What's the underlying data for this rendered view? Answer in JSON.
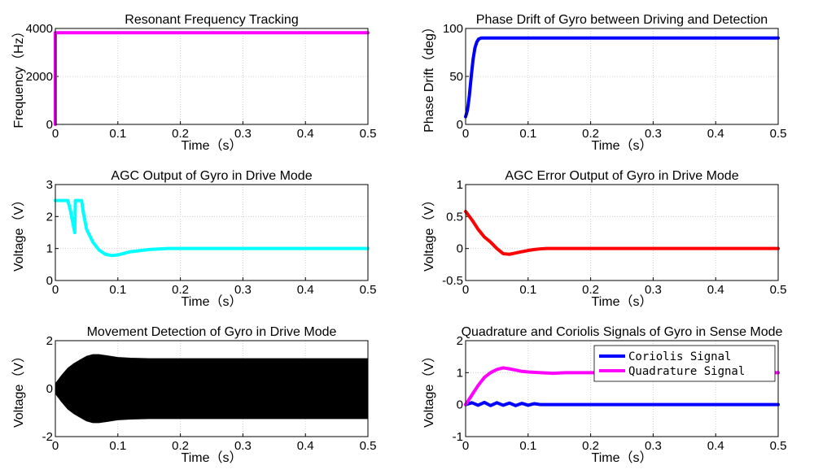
{
  "chart_data": [
    {
      "type": "line",
      "title": "Resonant Frequency Tracking",
      "xlabel": "Time（s）",
      "ylabel": "Frequency（Hz）",
      "xlim": [
        0,
        0.5
      ],
      "ylim": [
        0,
        4000
      ],
      "xticks": [
        "0",
        "0.1",
        "0.2",
        "0.3",
        "0.4",
        "0.5"
      ],
      "yticks": [
        "0",
        "2000",
        "4000"
      ],
      "grid": true,
      "series": [
        {
          "color": "#ff00ff",
          "x": [
            0,
            0,
            0.002,
            0.5
          ],
          "y": [
            0,
            3820,
            3820,
            3820
          ]
        }
      ]
    },
    {
      "type": "line",
      "title": "Phase Drift of Gyro between Driving and Detection",
      "xlabel": "Time（s）",
      "ylabel": "Phase Drift（deg）",
      "xlim": [
        0,
        0.5
      ],
      "ylim": [
        0,
        100
      ],
      "xticks": [
        "0",
        "0.1",
        "0.2",
        "0.3",
        "0.4",
        "0.5"
      ],
      "yticks": [
        "0",
        "50",
        "100"
      ],
      "grid": true,
      "series": [
        {
          "color": "#0000ff",
          "x": [
            0,
            0.003,
            0.006,
            0.009,
            0.012,
            0.015,
            0.018,
            0.021,
            0.025,
            0.03,
            0.05,
            0.5
          ],
          "y": [
            8,
            15,
            30,
            50,
            68,
            80,
            86,
            89,
            90,
            90,
            90,
            90
          ]
        }
      ]
    },
    {
      "type": "line",
      "title": "AGC Output of Gyro in Drive Mode",
      "xlabel": "Time（s）",
      "ylabel": "Voltage（V）",
      "xlim": [
        0,
        0.5
      ],
      "ylim": [
        0,
        3
      ],
      "xticks": [
        "0",
        "0.1",
        "0.2",
        "0.3",
        "0.4",
        "0.5"
      ],
      "yticks": [
        "0",
        "1",
        "2",
        "3"
      ],
      "grid": true,
      "series": [
        {
          "color": "#00ffff",
          "x": [
            0,
            0.02,
            0.024,
            0.028,
            0.031,
            0.032,
            0.034,
            0.042,
            0.045,
            0.05,
            0.06,
            0.07,
            0.08,
            0.09,
            0.1,
            0.12,
            0.15,
            0.18,
            0.25,
            0.5
          ],
          "y": [
            2.5,
            2.5,
            2.2,
            1.8,
            1.5,
            2.5,
            2.5,
            2.5,
            2.1,
            1.6,
            1.2,
            0.95,
            0.82,
            0.78,
            0.8,
            0.9,
            0.97,
            1.0,
            1.0,
            1.0
          ]
        }
      ]
    },
    {
      "type": "line",
      "title": "AGC Error Output of Gyro in Drive Mode",
      "xlabel": "Time（s）",
      "ylabel": "Voltage（V）",
      "xlim": [
        0,
        0.5
      ],
      "ylim": [
        -0.5,
        1
      ],
      "xticks": [
        "0",
        "0.1",
        "0.2",
        "0.3",
        "0.4",
        "0.5"
      ],
      "yticks": [
        "-0.5",
        "0",
        "0.5",
        "1"
      ],
      "grid": true,
      "series": [
        {
          "color": "#ff0000",
          "x": [
            0,
            0.01,
            0.02,
            0.03,
            0.04,
            0.05,
            0.06,
            0.07,
            0.08,
            0.09,
            0.1,
            0.11,
            0.12,
            0.13,
            0.2,
            0.5
          ],
          "y": [
            0.58,
            0.45,
            0.3,
            0.18,
            0.1,
            0.0,
            -0.08,
            -0.09,
            -0.07,
            -0.05,
            -0.03,
            -0.015,
            -0.005,
            0,
            0,
            0
          ]
        }
      ]
    },
    {
      "type": "area",
      "title": "Movement Detection of Gyro in Drive Mode",
      "xlabel": "Time（s）",
      "ylabel": "Voltage（V）",
      "xlim": [
        0,
        0.5
      ],
      "ylim": [
        -2,
        2
      ],
      "xticks": [
        "0",
        "0.1",
        "0.2",
        "0.3",
        "0.4",
        "0.5"
      ],
      "yticks": [
        "-2",
        "0",
        "2"
      ],
      "grid": true,
      "series": [
        {
          "color": "#000000",
          "x": [
            0,
            0.01,
            0.02,
            0.03,
            0.04,
            0.05,
            0.06,
            0.07,
            0.08,
            0.1,
            0.12,
            0.15,
            0.2,
            0.5
          ],
          "y": [
            0.2,
            0.55,
            0.85,
            1.05,
            1.2,
            1.35,
            1.42,
            1.42,
            1.38,
            1.3,
            1.27,
            1.25,
            1.25,
            1.25
          ]
        }
      ]
    },
    {
      "type": "line",
      "title": "Quadrature and Coriolis Signals of Gyro in Sense Mode",
      "xlabel": "Time（s）",
      "ylabel": "Voltage（V）",
      "xlim": [
        0,
        0.5
      ],
      "ylim": [
        -1,
        2
      ],
      "xticks": [
        "0",
        "0.1",
        "0.2",
        "0.3",
        "0.4",
        "0.5"
      ],
      "yticks": [
        "-1",
        "0",
        "1",
        "2"
      ],
      "grid": true,
      "legend": "top-right",
      "series": [
        {
          "name": "Coriolis Signal",
          "color": "#0000ff",
          "x": [
            0,
            0.01,
            0.02,
            0.03,
            0.04,
            0.05,
            0.06,
            0.07,
            0.08,
            0.09,
            0.1,
            0.11,
            0.12,
            0.14,
            0.5
          ],
          "y": [
            0,
            0.06,
            -0.02,
            0.07,
            -0.03,
            0.06,
            -0.02,
            0.05,
            -0.03,
            0.04,
            -0.02,
            0.03,
            0,
            0,
            0
          ]
        },
        {
          "name": "Quadrature Signal",
          "color": "#ff00ff",
          "x": [
            0,
            0.01,
            0.02,
            0.03,
            0.04,
            0.05,
            0.06,
            0.07,
            0.08,
            0.09,
            0.1,
            0.12,
            0.14,
            0.16,
            0.2,
            0.5
          ],
          "y": [
            0,
            0.3,
            0.6,
            0.85,
            1.0,
            1.1,
            1.15,
            1.12,
            1.08,
            1.04,
            1.02,
            1.0,
            0.98,
            1.0,
            1.0,
            1.0
          ]
        }
      ]
    }
  ]
}
